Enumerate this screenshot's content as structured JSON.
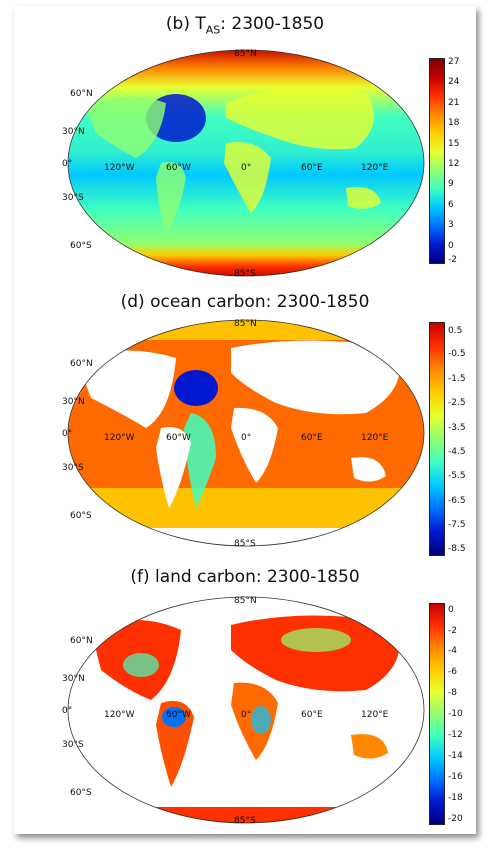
{
  "panels": [
    {
      "title_main": "(b) T",
      "title_sub": "AS",
      "title_rest": ": 2300-1850",
      "colorbar_ticks": [
        "27",
        "24",
        "21",
        "18",
        "15",
        "12",
        "9",
        "6",
        "3",
        "0",
        "-2"
      ],
      "lat_labels": [
        "85°N",
        "60°N",
        "30°N",
        "0°",
        "30°S",
        "60°S",
        "85°S"
      ],
      "lon_labels": [
        "120°W",
        "60°W",
        "0°",
        "60°E",
        "120°E"
      ]
    },
    {
      "title": "(d) ocean carbon: 2300-1850",
      "colorbar_ticks": [
        "0.5",
        "-0.5",
        "-1.5",
        "-2.5",
        "-3.5",
        "-4.5",
        "-5.5",
        "-6.5",
        "-7.5",
        "-8.5"
      ],
      "lat_labels": [
        "85°N",
        "60°N",
        "30°N",
        "0°",
        "30°S",
        "60°S",
        "85°S"
      ],
      "lon_labels": [
        "120°W",
        "60°W",
        "0°",
        "60°E",
        "120°E"
      ]
    },
    {
      "title": "(f) land carbon: 2300-1850",
      "colorbar_ticks": [
        "0",
        "-2",
        "-4",
        "-6",
        "-8",
        "-10",
        "-12",
        "-14",
        "-16",
        "-18",
        "-20"
      ],
      "lat_labels": [
        "85°N",
        "60°N",
        "30°N",
        "0°",
        "30°S",
        "60°S",
        "85°S"
      ],
      "lon_labels": [
        "120°W",
        "60°W",
        "0°",
        "60°E",
        "120°E"
      ]
    }
  ],
  "colormap": [
    "#7a0000",
    "#c40000",
    "#ff3000",
    "#ff8800",
    "#ffcc00",
    "#e8ff30",
    "#90ff70",
    "#40ffc0",
    "#00c8ff",
    "#0070ff",
    "#0018d0",
    "#00007a"
  ]
}
